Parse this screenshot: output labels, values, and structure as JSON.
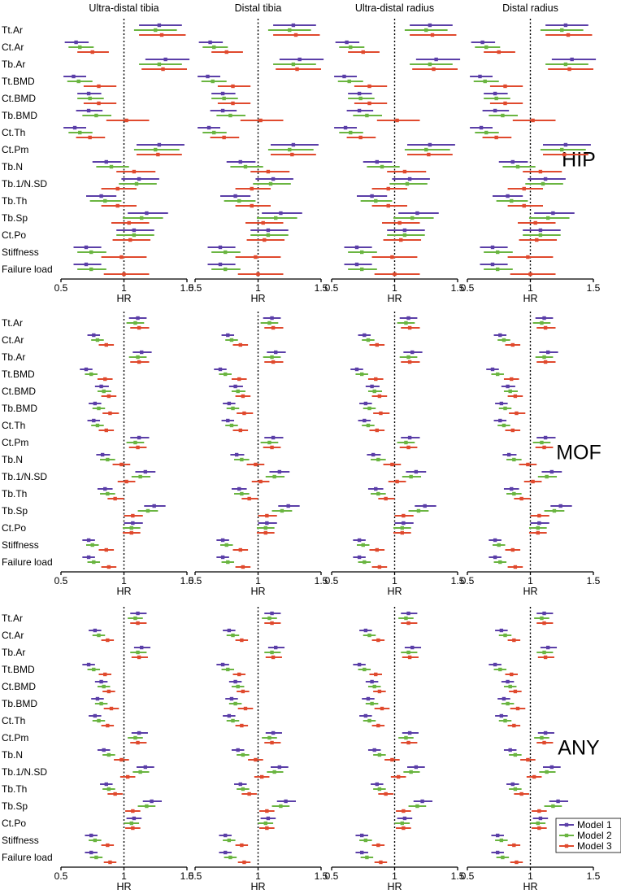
{
  "chart_data": {
    "type": "forest",
    "xlabel": "HR",
    "xlim": [
      0.5,
      1.5
    ],
    "xticks": [
      0.5,
      1,
      1.5
    ],
    "reference_line": 1,
    "columns": [
      "Ultra-distal tibia",
      "Distal tibia",
      "Ultra-distal radius",
      "Distal radius"
    ],
    "parameters": [
      "Tt.Ar",
      "Ct.Ar",
      "Tb.Ar",
      "Tt.BMD",
      "Ct.BMD",
      "Tb.BMD",
      "Ct.Th",
      "Ct.Pm",
      "Tb.N",
      "Tb.1/N.SD",
      "Tb.Th",
      "Tb.Sp",
      "Ct.Po",
      "Stiffness",
      "Failure load"
    ],
    "series": [
      {
        "name": "Model 1",
        "color": "#5b3fa8"
      },
      {
        "name": "Model 2",
        "color": "#6ab541"
      },
      {
        "name": "Model 3",
        "color": "#e04a2e"
      }
    ],
    "legend": "bottom-right",
    "panels": [
      {
        "outcome": "HIP",
        "values": [
          [
            [
              1.28,
              1.12,
              1.46
            ],
            [
              1.25,
              1.08,
              1.42
            ],
            [
              1.3,
              1.12,
              1.49
            ]
          ],
          [
            [
              0.62,
              0.53,
              0.72
            ],
            [
              0.65,
              0.56,
              0.76
            ],
            [
              0.75,
              0.63,
              0.88
            ]
          ],
          [
            [
              1.33,
              1.17,
              1.52
            ],
            [
              1.28,
              1.12,
              1.46
            ],
            [
              1.31,
              1.14,
              1.5
            ]
          ],
          [
            [
              0.6,
              0.52,
              0.7
            ],
            [
              0.64,
              0.55,
              0.75
            ],
            [
              0.8,
              0.68,
              0.94
            ]
          ],
          [
            [
              0.72,
              0.63,
              0.82
            ],
            [
              0.73,
              0.63,
              0.84
            ],
            [
              0.8,
              0.68,
              0.94
            ]
          ],
          [
            [
              0.72,
              0.62,
              0.83
            ],
            [
              0.78,
              0.67,
              0.9
            ],
            [
              1.02,
              0.86,
              1.2
            ]
          ],
          [
            [
              0.61,
              0.52,
              0.7
            ],
            [
              0.65,
              0.56,
              0.75
            ],
            [
              0.73,
              0.62,
              0.85
            ]
          ],
          [
            [
              1.28,
              1.1,
              1.48
            ],
            [
              1.25,
              1.08,
              1.44
            ],
            [
              1.27,
              1.1,
              1.46
            ]
          ],
          [
            [
              0.86,
              0.75,
              0.98
            ],
            [
              0.9,
              0.78,
              1.04
            ],
            [
              1.08,
              0.94,
              1.25
            ]
          ],
          [
            [
              1.12,
              0.98,
              1.28
            ],
            [
              1.1,
              0.96,
              1.26
            ],
            [
              0.95,
              0.82,
              1.1
            ]
          ],
          [
            [
              0.82,
              0.7,
              0.94
            ],
            [
              0.85,
              0.73,
              0.98
            ],
            [
              0.95,
              0.82,
              1.1
            ]
          ],
          [
            [
              1.18,
              1.03,
              1.35
            ],
            [
              1.14,
              0.99,
              1.31
            ],
            [
              1.04,
              0.9,
              1.2
            ]
          ],
          [
            [
              1.08,
              0.94,
              1.24
            ],
            [
              1.08,
              0.94,
              1.24
            ],
            [
              1.05,
              0.91,
              1.21
            ]
          ],
          [
            [
              0.7,
              0.6,
              0.82
            ],
            [
              0.74,
              0.63,
              0.86
            ],
            [
              0.98,
              0.82,
              1.18
            ]
          ],
          [
            [
              0.7,
              0.6,
              0.82
            ],
            [
              0.74,
              0.63,
              0.86
            ],
            [
              1.0,
              0.84,
              1.2
            ]
          ]
        ]
      },
      {
        "outcome": "MOF",
        "values": [
          [
            [
              1.11,
              1.04,
              1.18
            ],
            [
              1.09,
              1.02,
              1.16
            ],
            [
              1.12,
              1.05,
              1.2
            ]
          ],
          [
            [
              0.76,
              0.71,
              0.81
            ],
            [
              0.79,
              0.74,
              0.84
            ],
            [
              0.86,
              0.8,
              0.92
            ]
          ],
          [
            [
              1.14,
              1.07,
              1.22
            ],
            [
              1.11,
              1.04,
              1.18
            ],
            [
              1.12,
              1.05,
              1.2
            ]
          ],
          [
            [
              0.7,
              0.65,
              0.75
            ],
            [
              0.74,
              0.69,
              0.79
            ],
            [
              0.85,
              0.79,
              0.91
            ]
          ],
          [
            [
              0.82,
              0.77,
              0.88
            ],
            [
              0.84,
              0.79,
              0.9
            ],
            [
              0.88,
              0.82,
              0.94
            ]
          ],
          [
            [
              0.77,
              0.72,
              0.82
            ],
            [
              0.8,
              0.75,
              0.85
            ],
            [
              0.89,
              0.83,
              0.96
            ]
          ],
          [
            [
              0.76,
              0.71,
              0.81
            ],
            [
              0.79,
              0.74,
              0.84
            ],
            [
              0.86,
              0.8,
              0.92
            ]
          ],
          [
            [
              1.12,
              1.05,
              1.2
            ],
            [
              1.09,
              1.02,
              1.16
            ],
            [
              1.11,
              1.04,
              1.18
            ]
          ],
          [
            [
              0.83,
              0.78,
              0.89
            ],
            [
              0.87,
              0.81,
              0.93
            ],
            [
              0.98,
              0.91,
              1.05
            ]
          ],
          [
            [
              1.17,
              1.09,
              1.25
            ],
            [
              1.13,
              1.06,
              1.21
            ],
            [
              1.02,
              0.95,
              1.09
            ]
          ],
          [
            [
              0.85,
              0.79,
              0.91
            ],
            [
              0.87,
              0.81,
              0.93
            ],
            [
              0.93,
              0.87,
              1.0
            ]
          ],
          [
            [
              1.24,
              1.16,
              1.33
            ],
            [
              1.19,
              1.11,
              1.27
            ],
            [
              1.07,
              1.0,
              1.15
            ]
          ],
          [
            [
              1.07,
              1.0,
              1.15
            ],
            [
              1.06,
              0.99,
              1.13
            ],
            [
              1.06,
              0.99,
              1.13
            ]
          ],
          [
            [
              0.72,
              0.67,
              0.77
            ],
            [
              0.75,
              0.7,
              0.8
            ],
            [
              0.86,
              0.8,
              0.92
            ]
          ],
          [
            [
              0.72,
              0.67,
              0.77
            ],
            [
              0.76,
              0.71,
              0.81
            ],
            [
              0.88,
              0.82,
              0.94
            ]
          ]
        ]
      },
      {
        "outcome": "ANY",
        "values": [
          [
            [
              1.11,
              1.05,
              1.18
            ],
            [
              1.09,
              1.03,
              1.15
            ],
            [
              1.11,
              1.05,
              1.18
            ]
          ],
          [
            [
              0.77,
              0.72,
              0.82
            ],
            [
              0.8,
              0.75,
              0.85
            ],
            [
              0.87,
              0.82,
              0.92
            ]
          ],
          [
            [
              1.14,
              1.08,
              1.21
            ],
            [
              1.11,
              1.05,
              1.18
            ],
            [
              1.12,
              1.06,
              1.19
            ]
          ],
          [
            [
              0.72,
              0.67,
              0.77
            ],
            [
              0.76,
              0.71,
              0.81
            ],
            [
              0.85,
              0.8,
              0.9
            ]
          ],
          [
            [
              0.82,
              0.77,
              0.87
            ],
            [
              0.84,
              0.79,
              0.89
            ],
            [
              0.88,
              0.83,
              0.93
            ]
          ],
          [
            [
              0.79,
              0.74,
              0.84
            ],
            [
              0.82,
              0.77,
              0.87
            ],
            [
              0.9,
              0.84,
              0.96
            ]
          ],
          [
            [
              0.77,
              0.72,
              0.82
            ],
            [
              0.8,
              0.75,
              0.85
            ],
            [
              0.87,
              0.82,
              0.92
            ]
          ],
          [
            [
              1.12,
              1.06,
              1.19
            ],
            [
              1.09,
              1.03,
              1.15
            ],
            [
              1.11,
              1.05,
              1.18
            ]
          ],
          [
            [
              0.84,
              0.79,
              0.89
            ],
            [
              0.88,
              0.83,
              0.93
            ],
            [
              0.98,
              0.92,
              1.04
            ]
          ],
          [
            [
              1.17,
              1.1,
              1.24
            ],
            [
              1.13,
              1.07,
              1.2
            ],
            [
              1.03,
              0.97,
              1.09
            ]
          ],
          [
            [
              0.86,
              0.81,
              0.91
            ],
            [
              0.88,
              0.83,
              0.93
            ],
            [
              0.93,
              0.87,
              0.99
            ]
          ],
          [
            [
              1.22,
              1.15,
              1.3
            ],
            [
              1.18,
              1.11,
              1.25
            ],
            [
              1.07,
              1.01,
              1.13
            ]
          ],
          [
            [
              1.08,
              1.02,
              1.14
            ],
            [
              1.06,
              1.0,
              1.12
            ],
            [
              1.07,
              1.01,
              1.13
            ]
          ],
          [
            [
              0.74,
              0.69,
              0.79
            ],
            [
              0.77,
              0.72,
              0.82
            ],
            [
              0.87,
              0.82,
              0.92
            ]
          ],
          [
            [
              0.74,
              0.69,
              0.79
            ],
            [
              0.78,
              0.73,
              0.83
            ],
            [
              0.89,
              0.84,
              0.94
            ]
          ]
        ]
      }
    ]
  }
}
